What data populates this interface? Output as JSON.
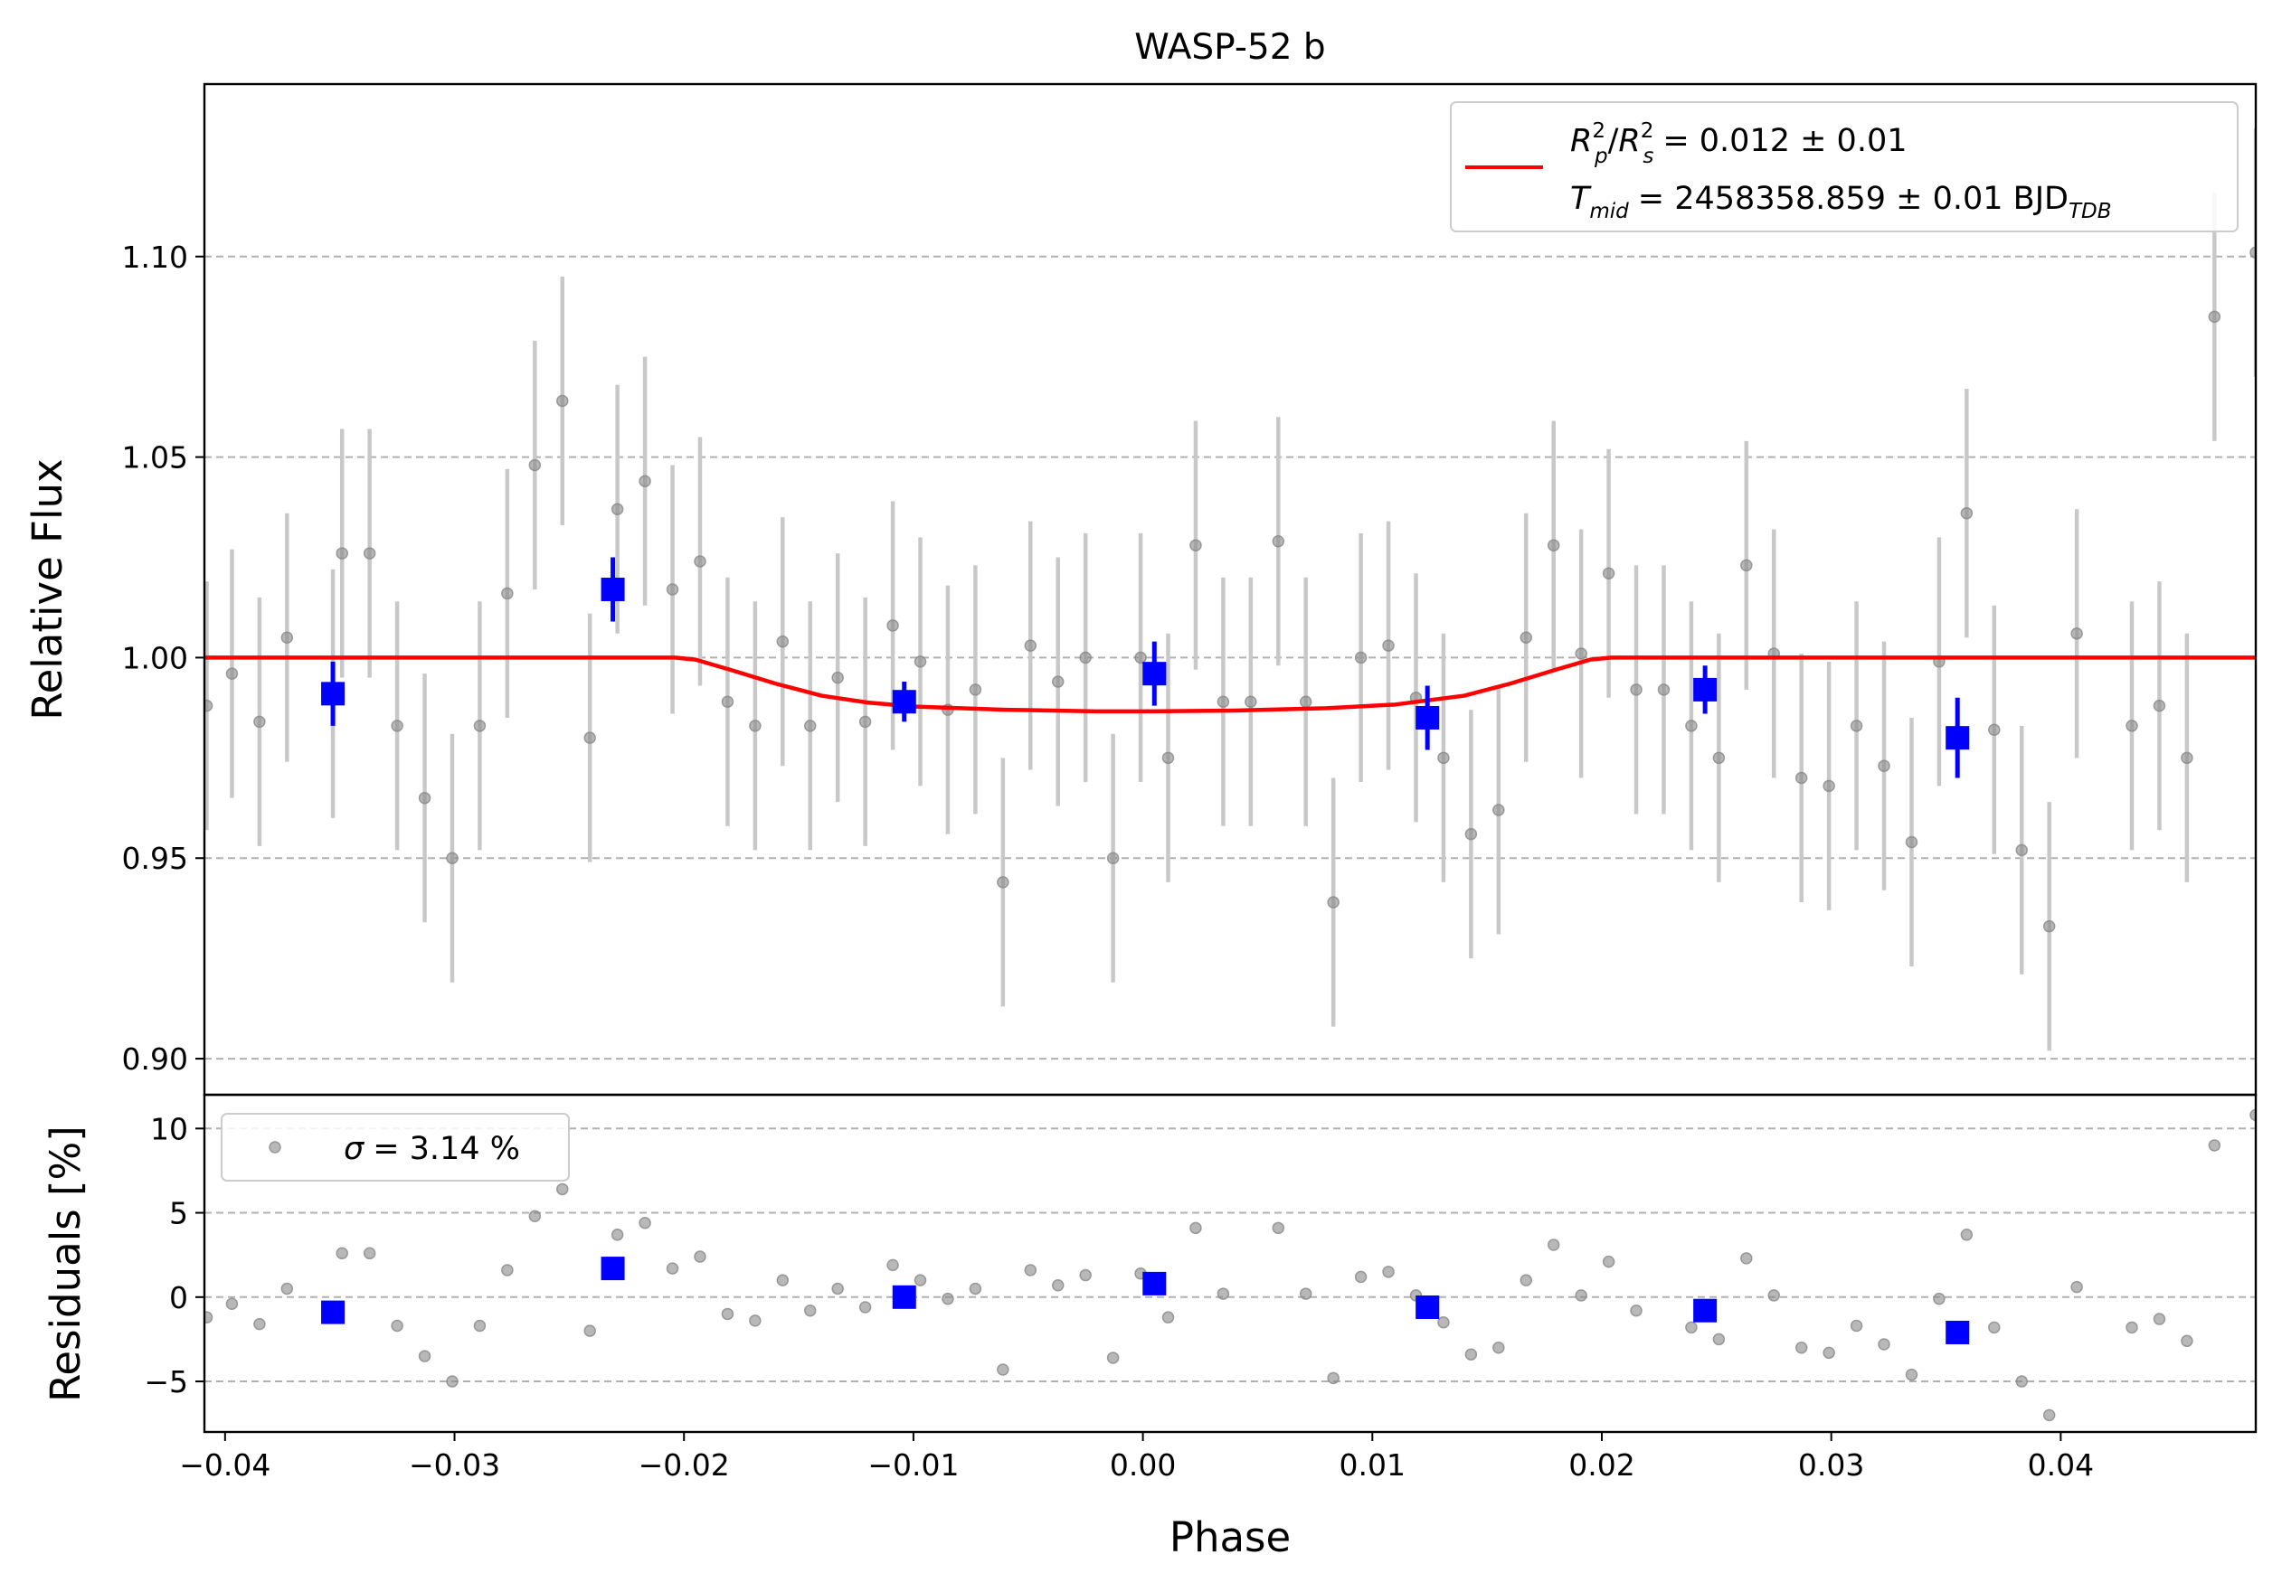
{
  "chart_data": {
    "title": "WASP-52 b",
    "type": "scatter",
    "xlabel": "Phase",
    "xlim": [
      -0.0409,
      0.0485
    ],
    "x_ticks": [
      -0.04,
      -0.03,
      -0.02,
      -0.01,
      0.0,
      0.01,
      0.02,
      0.03,
      0.04
    ],
    "x_tick_labels": [
      "−0.04",
      "−0.03",
      "−0.02",
      "−0.01",
      "0.00",
      "0.01",
      "0.02",
      "0.03",
      "0.04"
    ],
    "top_panel": {
      "ylabel": "Relative Flux",
      "ylim": [
        0.891,
        1.143
      ],
      "y_ticks": [
        0.9,
        0.95,
        1.0,
        1.05,
        1.1
      ],
      "y_tick_labels": [
        "0.90",
        "0.95",
        "1.00",
        "1.05",
        "1.10"
      ],
      "grid": "horizontal dashed",
      "legend": {
        "placement": "upper right",
        "line1_ratio_value": "= 0.012 ± 0.01",
        "line2_tmid_value": "= 2458358.859 ± 0.01 BJD",
        "line2_tmid_sub": "TDB",
        "color": "#ff0000"
      },
      "raw_series": {
        "color": "#888888",
        "error": 0.031,
        "points": [
          [
            -0.0408,
            0.988
          ],
          [
            -0.0397,
            0.996
          ],
          [
            -0.0385,
            0.984
          ],
          [
            -0.0373,
            1.005
          ],
          [
            -0.0353,
            0.991
          ],
          [
            -0.0349,
            1.026
          ],
          [
            -0.0337,
            1.026
          ],
          [
            -0.0325,
            0.983
          ],
          [
            -0.0313,
            0.965
          ],
          [
            -0.0301,
            0.95
          ],
          [
            -0.0289,
            0.983
          ],
          [
            -0.0277,
            1.016
          ],
          [
            -0.0265,
            1.048
          ],
          [
            -0.0253,
            1.064
          ],
          [
            -0.0241,
            0.98
          ],
          [
            -0.0229,
            1.037
          ],
          [
            -0.0217,
            1.044
          ],
          [
            -0.0205,
            1.017
          ],
          [
            -0.0193,
            1.024
          ],
          [
            -0.0181,
            0.989
          ],
          [
            -0.0169,
            0.983
          ],
          [
            -0.0157,
            1.004
          ],
          [
            -0.0145,
            0.983
          ],
          [
            -0.0133,
            0.995
          ],
          [
            -0.0121,
            0.984
          ],
          [
            -0.0109,
            1.008
          ],
          [
            -0.0097,
            0.999
          ],
          [
            -0.0085,
            0.987
          ],
          [
            -0.0073,
            0.992
          ],
          [
            -0.0061,
            0.944
          ],
          [
            -0.0049,
            1.003
          ],
          [
            -0.0037,
            0.994
          ],
          [
            -0.0025,
            1.0
          ],
          [
            -0.0013,
            0.95
          ],
          [
            -0.0001,
            1.0
          ],
          [
            0.0011,
            0.975
          ],
          [
            0.0023,
            1.028
          ],
          [
            0.0035,
            0.989
          ],
          [
            0.0047,
            0.989
          ],
          [
            0.0059,
            1.029
          ],
          [
            0.0071,
            0.989
          ],
          [
            0.0083,
            0.939
          ],
          [
            0.0095,
            1.0
          ],
          [
            0.0107,
            1.003
          ],
          [
            0.0119,
            0.99
          ],
          [
            0.0131,
            0.975
          ],
          [
            0.0143,
            0.956
          ],
          [
            0.0155,
            0.962
          ],
          [
            0.0167,
            1.005
          ],
          [
            0.0179,
            1.028
          ],
          [
            0.0191,
            1.001
          ],
          [
            0.0203,
            1.021
          ],
          [
            0.0215,
            0.992
          ],
          [
            0.0227,
            0.992
          ],
          [
            0.0239,
            0.983
          ],
          [
            0.0251,
            0.975
          ],
          [
            0.0263,
            1.023
          ],
          [
            0.0275,
            1.001
          ],
          [
            0.0287,
            0.97
          ],
          [
            0.0299,
            0.968
          ],
          [
            0.0311,
            0.983
          ],
          [
            0.0323,
            0.973
          ],
          [
            0.0335,
            0.954
          ],
          [
            0.0347,
            0.999
          ],
          [
            0.0359,
            1.036
          ],
          [
            0.0371,
            0.982
          ],
          [
            0.0383,
            0.952
          ],
          [
            0.0395,
            0.933
          ],
          [
            0.0407,
            1.006
          ],
          [
            0.0431,
            0.983
          ],
          [
            0.0443,
            0.988
          ],
          [
            0.0455,
            0.975
          ],
          [
            0.0467,
            1.085
          ],
          [
            0.0485,
            1.101
          ]
        ]
      },
      "binned_series": {
        "color": "#0000ff",
        "points": [
          [
            -0.0353,
            0.991,
            0.008
          ],
          [
            -0.0231,
            1.017,
            0.008
          ],
          [
            -0.0104,
            0.989,
            0.005
          ],
          [
            0.0005,
            0.996,
            0.008
          ],
          [
            0.0124,
            0.985,
            0.008
          ],
          [
            0.0245,
            0.992,
            0.006
          ],
          [
            0.0355,
            0.98,
            0.01
          ]
        ]
      },
      "model": {
        "color": "#ff0000",
        "points": [
          [
            -0.0409,
            1.0
          ],
          [
            -0.0204,
            1.0
          ],
          [
            -0.0195,
            0.9995
          ],
          [
            -0.018,
            0.997
          ],
          [
            -0.016,
            0.9935
          ],
          [
            -0.014,
            0.9905
          ],
          [
            -0.012,
            0.9888
          ],
          [
            -0.01,
            0.9878
          ],
          [
            -0.006,
            0.987
          ],
          [
            -0.002,
            0.9866
          ],
          [
            0.0,
            0.9866
          ],
          [
            0.004,
            0.9868
          ],
          [
            0.008,
            0.9874
          ],
          [
            0.011,
            0.9883
          ],
          [
            0.014,
            0.9905
          ],
          [
            0.016,
            0.9935
          ],
          [
            0.018,
            0.997
          ],
          [
            0.0195,
            0.9995
          ],
          [
            0.0204,
            1.0
          ],
          [
            0.0485,
            1.0
          ]
        ]
      }
    },
    "bottom_panel": {
      "ylabel": "Residuals [%]",
      "ylim": [
        -8,
        12
      ],
      "y_ticks": [
        -5,
        0,
        5,
        10
      ],
      "y_tick_labels": [
        "−5",
        "0",
        "5",
        "10"
      ],
      "grid": "horizontal dashed",
      "legend": {
        "placement": "upper left",
        "value_text": "= 3.14 %"
      },
      "raw_series": {
        "color": "#888888",
        "points": [
          [
            -0.0408,
            -1.2
          ],
          [
            -0.0397,
            -0.4
          ],
          [
            -0.0385,
            -1.6
          ],
          [
            -0.0373,
            0.5
          ],
          [
            -0.0349,
            2.6
          ],
          [
            -0.0337,
            2.6
          ],
          [
            -0.0325,
            -1.7
          ],
          [
            -0.0313,
            -3.5
          ],
          [
            -0.0301,
            -5.0
          ],
          [
            -0.0289,
            -1.7
          ],
          [
            -0.0277,
            1.6
          ],
          [
            -0.0265,
            4.8
          ],
          [
            -0.0253,
            6.4
          ],
          [
            -0.0241,
            -2.0
          ],
          [
            -0.0229,
            3.7
          ],
          [
            -0.0217,
            4.4
          ],
          [
            -0.0205,
            1.7
          ],
          [
            -0.0193,
            2.4
          ],
          [
            -0.0181,
            -1.0
          ],
          [
            -0.0169,
            -1.4
          ],
          [
            -0.0157,
            1.0
          ],
          [
            -0.0145,
            -0.8
          ],
          [
            -0.0133,
            0.5
          ],
          [
            -0.0121,
            -0.6
          ],
          [
            -0.0109,
            1.9
          ],
          [
            -0.0097,
            1.0
          ],
          [
            -0.0085,
            -0.1
          ],
          [
            -0.0073,
            0.5
          ],
          [
            -0.0061,
            -4.3
          ],
          [
            -0.0049,
            1.6
          ],
          [
            -0.0037,
            0.7
          ],
          [
            -0.0025,
            1.3
          ],
          [
            -0.0013,
            -3.6
          ],
          [
            -0.0001,
            1.4
          ],
          [
            0.0011,
            -1.2
          ],
          [
            0.0023,
            4.1
          ],
          [
            0.0035,
            0.2
          ],
          [
            0.0059,
            4.1
          ],
          [
            0.0071,
            0.2
          ],
          [
            0.0083,
            -4.8
          ],
          [
            0.0095,
            1.2
          ],
          [
            0.0107,
            1.5
          ],
          [
            0.0119,
            0.1
          ],
          [
            0.0131,
            -1.5
          ],
          [
            0.0143,
            -3.4
          ],
          [
            0.0155,
            -3.0
          ],
          [
            0.0167,
            1.0
          ],
          [
            0.0179,
            3.1
          ],
          [
            0.0191,
            0.1
          ],
          [
            0.0203,
            2.1
          ],
          [
            0.0215,
            -0.8
          ],
          [
            0.0239,
            -1.8
          ],
          [
            0.0251,
            -2.5
          ],
          [
            0.0263,
            2.3
          ],
          [
            0.0275,
            0.1
          ],
          [
            0.0287,
            -3.0
          ],
          [
            0.0299,
            -3.3
          ],
          [
            0.0311,
            -1.7
          ],
          [
            0.0323,
            -2.8
          ],
          [
            0.0335,
            -4.6
          ],
          [
            0.0347,
            -0.1
          ],
          [
            0.0359,
            3.7
          ],
          [
            0.0371,
            -1.8
          ],
          [
            0.0383,
            -5.0
          ],
          [
            0.0395,
            -7.0
          ],
          [
            0.0407,
            0.6
          ],
          [
            0.0431,
            -1.8
          ],
          [
            0.0443,
            -1.3
          ],
          [
            0.0455,
            -2.6
          ],
          [
            0.0467,
            9.0
          ],
          [
            0.0485,
            10.8
          ]
        ]
      },
      "binned_series": {
        "color": "#0000ff",
        "points": [
          [
            -0.0353,
            -0.9
          ],
          [
            -0.0231,
            1.7
          ],
          [
            -0.0104,
            0.0
          ],
          [
            0.0005,
            0.8
          ],
          [
            0.0124,
            -0.6
          ],
          [
            0.0245,
            -0.8
          ],
          [
            0.0355,
            -2.1
          ]
        ]
      }
    }
  }
}
